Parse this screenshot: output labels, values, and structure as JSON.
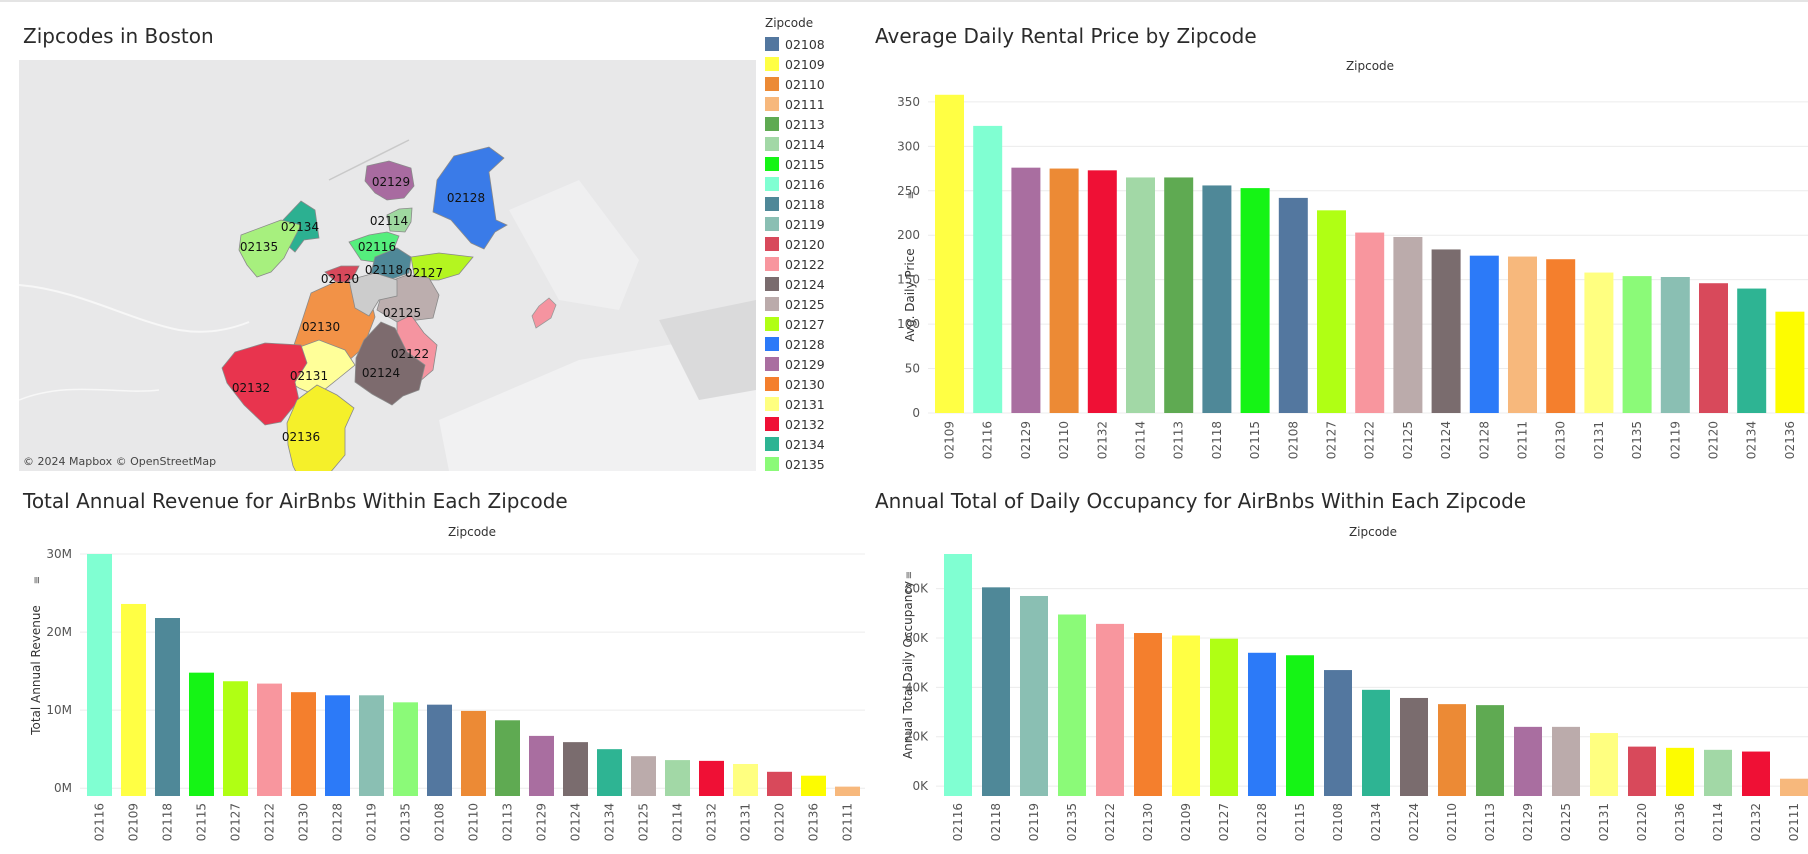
{
  "map_panel": {
    "title": "Zipcodes in Boston",
    "credit": "© 2024 Mapbox  © OpenStreetMap",
    "legend_title": "Zipcode",
    "regions": [
      {
        "zip": "02129",
        "color": "#a86ba0"
      },
      {
        "zip": "02128",
        "color": "#3a7be8"
      },
      {
        "zip": "02134",
        "color": "#2cb091"
      },
      {
        "zip": "02135",
        "color": "#a7f07e"
      },
      {
        "zip": "02114",
        "color": "#9fd9a0"
      },
      {
        "zip": "02116",
        "color": "#55ee7d"
      },
      {
        "zip": "02120",
        "color": "#d8495b"
      },
      {
        "zip": "02118",
        "color": "#4f8898"
      },
      {
        "zip": "02127",
        "color": "#b4f520"
      },
      {
        "zip": "02125",
        "color": "#bcaeae"
      },
      {
        "zip": "02130",
        "color": "#f29247"
      },
      {
        "zip": "02122",
        "color": "#f594a0"
      },
      {
        "zip": "02124",
        "color": "#7d6b6e"
      },
      {
        "zip": "02131",
        "color": "#ffff99"
      },
      {
        "zip": "02132",
        "color": "#e8344e"
      },
      {
        "zip": "02136",
        "color": "#f5f02a"
      }
    ]
  },
  "legend": [
    {
      "zip": "02108",
      "color": "#53779f"
    },
    {
      "zip": "02109",
      "color": "#ffff44"
    },
    {
      "zip": "02110",
      "color": "#ec8a35"
    },
    {
      "zip": "02111",
      "color": "#f7b87c"
    },
    {
      "zip": "02113",
      "color": "#5faa52"
    },
    {
      "zip": "02114",
      "color": "#a2d8a6"
    },
    {
      "zip": "02115",
      "color": "#15f415"
    },
    {
      "zip": "02116",
      "color": "#80ffd2"
    },
    {
      "zip": "02118",
      "color": "#4f8898"
    },
    {
      "zip": "02119",
      "color": "#8abfb3"
    },
    {
      "zip": "02120",
      "color": "#d8495b"
    },
    {
      "zip": "02122",
      "color": "#f8969e"
    },
    {
      "zip": "02124",
      "color": "#7a6c6e"
    },
    {
      "zip": "02125",
      "color": "#bbabab"
    },
    {
      "zip": "02127",
      "color": "#b0ff14"
    },
    {
      "zip": "02128",
      "color": "#2c7af8"
    },
    {
      "zip": "02129",
      "color": "#a96ea0"
    },
    {
      "zip": "02130",
      "color": "#f47f2d"
    },
    {
      "zip": "02131",
      "color": "#ffff80"
    },
    {
      "zip": "02132",
      "color": "#ef1035"
    },
    {
      "zip": "02134",
      "color": "#2eb493"
    },
    {
      "zip": "02135",
      "color": "#8bfa78"
    }
  ],
  "chart_data": [
    {
      "type": "bar",
      "title": "Average Daily Rental Price by Zipcode",
      "header": "Zipcode",
      "ylabel": "Avg. Daily Price",
      "ylim": [
        0,
        360
      ],
      "yticks": [
        0,
        50,
        100,
        150,
        200,
        250,
        300,
        350
      ],
      "ytick_labels": [
        "0",
        "50",
        "100",
        "150",
        "200",
        "250",
        "300",
        "350"
      ],
      "categories": [
        "02109",
        "02116",
        "02129",
        "02110",
        "02132",
        "02114",
        "02113",
        "02118",
        "02115",
        "02108",
        "02127",
        "02122",
        "02125",
        "02124",
        "02128",
        "02111",
        "02130",
        "02131",
        "02135",
        "02119",
        "02120",
        "02134",
        "02136"
      ],
      "values": [
        358,
        323,
        276,
        275,
        273,
        265,
        265,
        256,
        253,
        242,
        228,
        203,
        198,
        184,
        177,
        176,
        173,
        158,
        154,
        153,
        146,
        140,
        114
      ]
    },
    {
      "type": "bar",
      "title": "Total Annual Revenue for AirBnbs Within Each Zipcode",
      "header": "Zipcode",
      "ylabel": "Total Annual Revenue",
      "ylim": [
        -1,
        30
      ],
      "yticks": [
        0,
        10,
        20,
        30
      ],
      "ytick_labels": [
        "0M",
        "10M",
        "20M",
        "30M"
      ],
      "categories": [
        "02116",
        "02109",
        "02118",
        "02115",
        "02127",
        "02122",
        "02130",
        "02128",
        "02119",
        "02135",
        "02108",
        "02110",
        "02113",
        "02129",
        "02124",
        "02134",
        "02125",
        "02114",
        "02132",
        "02131",
        "02120",
        "02136",
        "02111"
      ],
      "values": [
        30.0,
        23.6,
        21.8,
        14.8,
        13.7,
        13.4,
        12.3,
        11.9,
        11.9,
        11.0,
        10.7,
        9.9,
        8.7,
        6.7,
        5.9,
        5.0,
        4.1,
        3.6,
        3.5,
        3.1,
        2.1,
        1.6,
        0.2
      ]
    },
    {
      "type": "bar",
      "title": "Annual Total of Daily Occupancy for AirBnbs Within Each Zipcode",
      "header": "Zipcode",
      "ylabel": "Annual Total Daily Occupancy",
      "ylim": [
        -4,
        94
      ],
      "yticks": [
        0,
        20,
        40,
        60,
        80
      ],
      "ytick_labels": [
        "0K",
        "20K",
        "40K",
        "60K",
        "80K"
      ],
      "categories": [
        "02116",
        "02118",
        "02119",
        "02135",
        "02122",
        "02130",
        "02109",
        "02127",
        "02128",
        "02115",
        "02108",
        "02134",
        "02124",
        "02110",
        "02113",
        "02129",
        "02125",
        "02131",
        "02120",
        "02136",
        "02114",
        "02132",
        "02111"
      ],
      "values": [
        94,
        80.5,
        77,
        69.5,
        65.7,
        62,
        61,
        59.7,
        54,
        53,
        47,
        39,
        35.7,
        33.2,
        32.8,
        24,
        24,
        21.5,
        16,
        15.5,
        14.7,
        14,
        3
      ]
    }
  ]
}
